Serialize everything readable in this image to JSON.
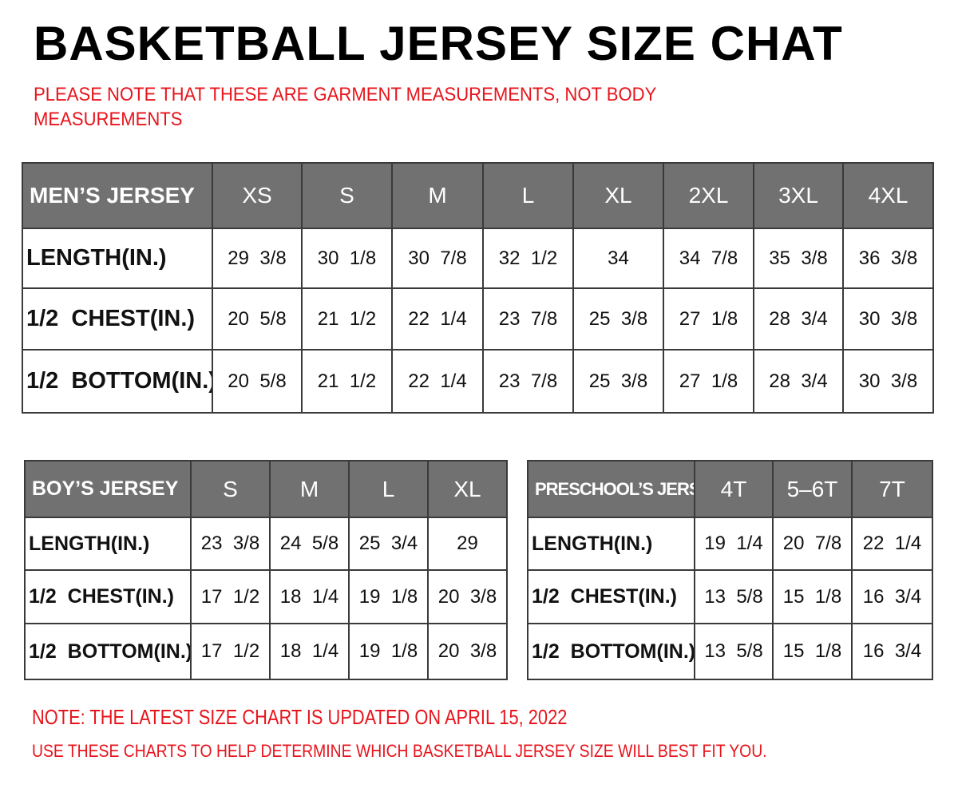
{
  "title": "BASKETBALL JERSEY SIZE CHAT",
  "note_top": "PLEASE NOTE THAT THESE ARE GARMENT MEASUREMENTS, NOT BODY MEASUREMENTS",
  "note_update": "NOTE: THE LATEST SIZE CHART IS UPDATED ON APRIL 15, 2022",
  "note_fit": "USE THESE CHARTS TO HELP DETERMINE WHICH  BASKETBALL JERSEY  SIZE WILL BEST FIT YOU.",
  "colors": {
    "header_bg": "#717171",
    "note_red": "#e8141c"
  },
  "tables": {
    "men": {
      "header": "MEN’S JERSEY",
      "sizes": [
        "XS",
        "S",
        "M",
        "L",
        "XL",
        "2XL",
        "3XL",
        "4XL"
      ],
      "rows": [
        {
          "label": "LENGTH(IN.)",
          "values": [
            "29  3/8",
            "30  1/8",
            "30  7/8",
            "32  1/2",
            "34",
            "34  7/8",
            "35  3/8",
            "36  3/8"
          ]
        },
        {
          "label": "1/2  CHEST(IN.)",
          "values": [
            "20  5/8",
            "21  1/2",
            "22  1/4",
            "23  7/8",
            "25  3/8",
            "27  1/8",
            "28  3/4",
            "30  3/8"
          ]
        },
        {
          "label": "1/2  BOTTOM(IN.)",
          "values": [
            "20  5/8",
            "21  1/2",
            "22  1/4",
            "23  7/8",
            "25  3/8",
            "27  1/8",
            "28  3/4",
            "30  3/8"
          ]
        }
      ]
    },
    "boy": {
      "header": "BOY’S JERSEY",
      "sizes": [
        "S",
        "M",
        "L",
        "XL"
      ],
      "rows": [
        {
          "label": "LENGTH(IN.)",
          "values": [
            "23  3/8",
            "24  5/8",
            "25  3/4",
            "29"
          ]
        },
        {
          "label": "1/2  CHEST(IN.)",
          "values": [
            "17  1/2",
            "18  1/4",
            "19  1/8",
            "20  3/8"
          ]
        },
        {
          "label": "1/2  BOTTOM(IN.)",
          "values": [
            "17  1/2",
            "18  1/4",
            "19  1/8",
            "20  3/8"
          ]
        }
      ]
    },
    "pre": {
      "header": "PRESCHOOL’S JERSEY",
      "sizes": [
        "4T",
        "5–6T",
        "7T"
      ],
      "rows": [
        {
          "label": "LENGTH(IN.)",
          "values": [
            "19  1/4",
            "20  7/8",
            "22  1/4"
          ]
        },
        {
          "label": "1/2  CHEST(IN.)",
          "values": [
            "13  5/8",
            "15  1/8",
            "16  3/4"
          ]
        },
        {
          "label": "1/2  BOTTOM(IN.)",
          "values": [
            "13  5/8",
            "15  1/8",
            "16  3/4"
          ]
        }
      ]
    }
  }
}
